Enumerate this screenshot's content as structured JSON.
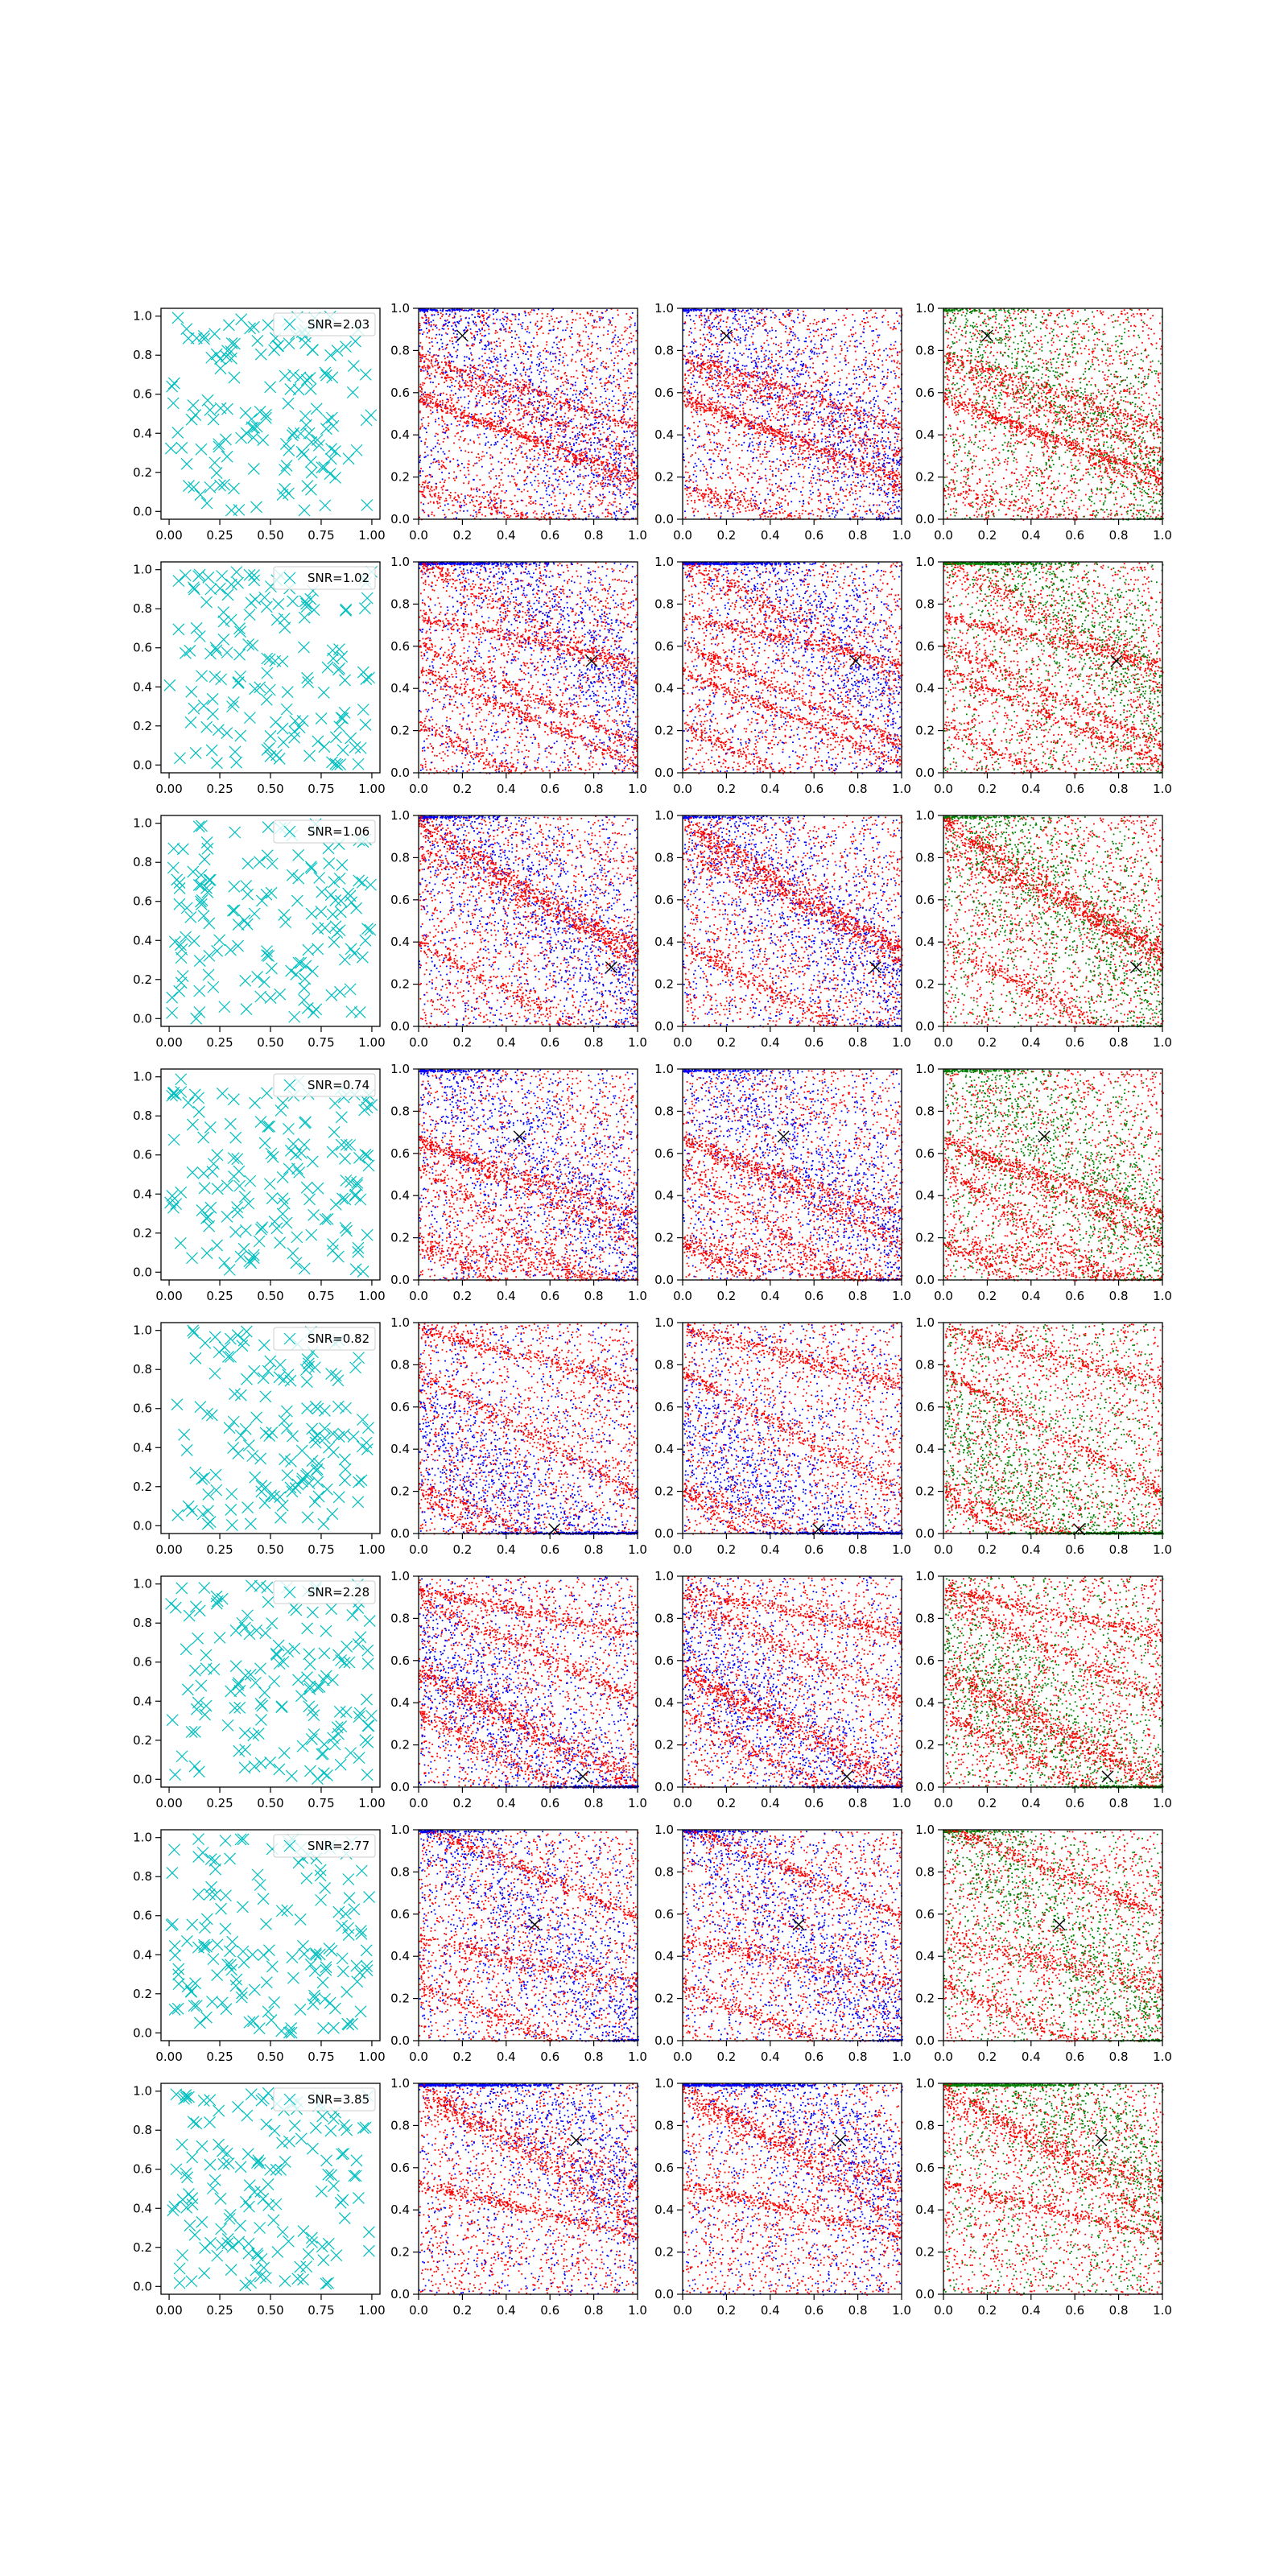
{
  "figure": {
    "rows": 8,
    "cols": 4,
    "background": "#ffffff"
  },
  "colors": {
    "marker_panel": "#00bfbf",
    "red": "#ff0000",
    "blue": "#0000ff",
    "green": "#008000",
    "peak_marker": "#000000"
  },
  "chart_data": [
    {
      "row": 0,
      "type": "scatter",
      "legend": "SNR=2.03",
      "peak": [
        0.2,
        0.87
      ]
    },
    {
      "row": 1,
      "type": "scatter",
      "legend": "SNR=1.02",
      "peak": [
        0.79,
        0.53
      ]
    },
    {
      "row": 2,
      "type": "scatter",
      "legend": "SNR=1.06",
      "peak": [
        0.88,
        0.28
      ]
    },
    {
      "row": 3,
      "type": "scatter",
      "legend": "SNR=0.74",
      "peak": [
        0.46,
        0.68
      ]
    },
    {
      "row": 4,
      "type": "scatter",
      "legend": "SNR=0.82",
      "peak": [
        0.62,
        0.02
      ]
    },
    {
      "row": 5,
      "type": "scatter",
      "legend": "SNR=2.28",
      "peak": [
        0.75,
        0.05
      ]
    },
    {
      "row": 6,
      "type": "scatter",
      "legend": "SNR=2.77",
      "peak": [
        0.53,
        0.55
      ]
    },
    {
      "row": 7,
      "type": "scatter",
      "legend": "SNR=3.85",
      "peak": [
        0.72,
        0.73
      ]
    }
  ],
  "panels": {
    "col0": {
      "marker": "x",
      "xlim": [
        -0.04,
        1.04
      ],
      "ylim": [
        -0.04,
        1.04
      ],
      "xticks": [
        0.0,
        0.25,
        0.5,
        0.75,
        1.0
      ],
      "xtick_labels": [
        "0.00",
        "0.25",
        "0.50",
        "0.75",
        "1.00"
      ],
      "yticks": [
        0.0,
        0.2,
        0.4,
        0.6,
        0.8,
        1.0
      ],
      "ytick_labels": [
        "0.0",
        "0.2",
        "0.4",
        "0.6",
        "0.8",
        "1.0"
      ]
    },
    "col1to3": {
      "xlim": [
        0,
        1
      ],
      "ylim": [
        0,
        1
      ],
      "xticks": [
        0.0,
        0.2,
        0.4,
        0.6,
        0.8,
        1.0
      ],
      "xtick_labels": [
        "0.0",
        "0.2",
        "0.4",
        "0.6",
        "0.8",
        "1.0"
      ],
      "yticks": [
        0.0,
        0.2,
        0.4,
        0.6,
        0.8,
        1.0
      ],
      "ytick_labels": [
        "0.0",
        "0.2",
        "0.4",
        "0.6",
        "0.8",
        "1.0"
      ],
      "point_colors": [
        [
          "red",
          "blue"
        ],
        [
          "red",
          "blue"
        ],
        [
          "red",
          "green"
        ]
      ]
    }
  }
}
